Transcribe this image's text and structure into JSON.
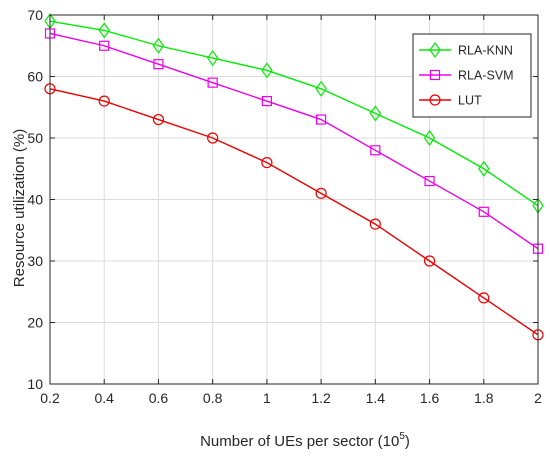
{
  "chart_data": {
    "type": "line",
    "xlabel": "Number of UEs per sector (10",
    "xlabel_exponent": "5",
    "xlabel_close": ")",
    "ylabel": "Resource utilization (%)",
    "x": [
      0.2,
      0.4,
      0.6,
      0.8,
      1.0,
      1.2,
      1.4,
      1.6,
      1.8,
      2.0
    ],
    "x_tick_labels": [
      "0.2",
      "0.4",
      "0.6",
      "0.8",
      "1",
      "1.2",
      "1.4",
      "1.6",
      "1.8",
      "2"
    ],
    "y_ticks": [
      10,
      20,
      30,
      40,
      50,
      60,
      70
    ],
    "y_tick_labels": [
      "10",
      "20",
      "30",
      "40",
      "50",
      "60",
      "70"
    ],
    "xlim": [
      0.2,
      2.0
    ],
    "ylim": [
      10,
      70
    ],
    "grid": true,
    "legend_position": "top-right",
    "series": [
      {
        "name": "RLA-KNN",
        "color": "#00ee00",
        "marker": "diamond",
        "values": [
          69,
          67.5,
          65,
          63,
          61,
          58,
          54,
          50,
          45,
          39
        ]
      },
      {
        "name": "RLA-SVM",
        "color": "#ee00ee",
        "marker": "square",
        "values": [
          67,
          65,
          62,
          59,
          56,
          53,
          48,
          43,
          38,
          32
        ]
      },
      {
        "name": "LUT",
        "color": "#ee0000",
        "marker": "circle",
        "values": [
          58,
          56,
          53,
          50,
          46,
          41,
          36,
          30,
          24,
          18
        ]
      }
    ]
  }
}
